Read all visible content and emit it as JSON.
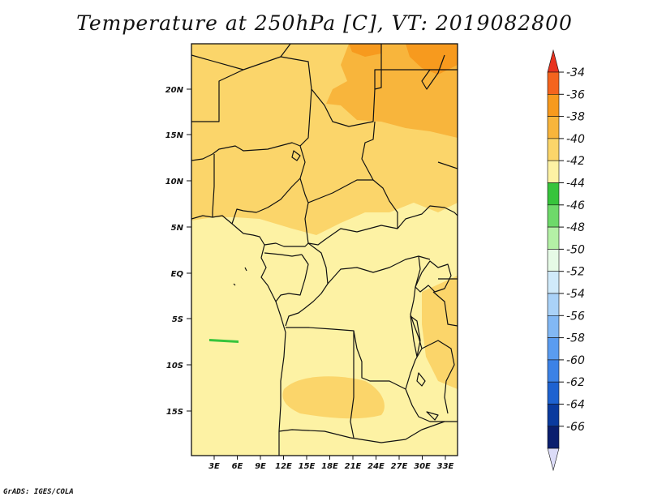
{
  "title": "Temperature at 250hPa [C], VT: 2019082800",
  "credit": "GrADS: IGES/COLA",
  "map": {
    "lat_labels": [
      "20N",
      "15N",
      "10N",
      "5N",
      "EQ",
      "5S",
      "10S",
      "15S"
    ],
    "lon_labels": [
      "3E",
      "6E",
      "9E",
      "12E",
      "15E",
      "18E",
      "21E",
      "24E",
      "27E",
      "30E",
      "33E"
    ]
  },
  "colorbar": {
    "labels": [
      "-34",
      "-36",
      "-38",
      "-40",
      "-42",
      "-44",
      "-46",
      "-48",
      "-50",
      "-52",
      "-54",
      "-56",
      "-58",
      "-60",
      "-62",
      "-64",
      "-66"
    ],
    "colors": [
      "#e8321e",
      "#f4641e",
      "#f79a1e",
      "#f8b53c",
      "#fbd56a",
      "#fdf2a4",
      "#37c43c",
      "#6ed96a",
      "#b4f0a6",
      "#e6fae6",
      "#d0eafa",
      "#aad2f8",
      "#82b8f4",
      "#5a9cf0",
      "#3c82e6",
      "#1e62d0",
      "#0a3a9e",
      "#0a1e6e",
      "#dcdcf8"
    ]
  }
}
